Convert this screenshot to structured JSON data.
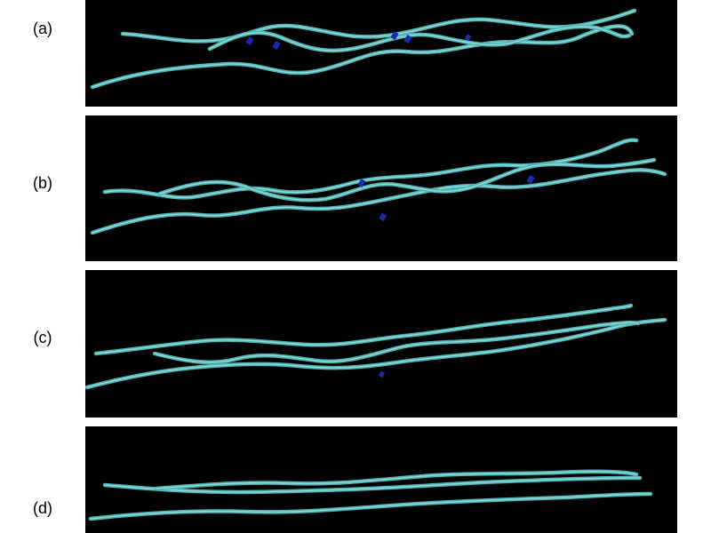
{
  "panels": [
    {
      "label": "(a)"
    },
    {
      "label": "(b)"
    },
    {
      "label": "(c)"
    },
    {
      "label": "(d)"
    }
  ],
  "colors": {
    "background": "#000000",
    "ribbon": "#4fb6b6",
    "ribbon_highlight": "#a8e4e4",
    "marker": "#1a2bb0"
  }
}
